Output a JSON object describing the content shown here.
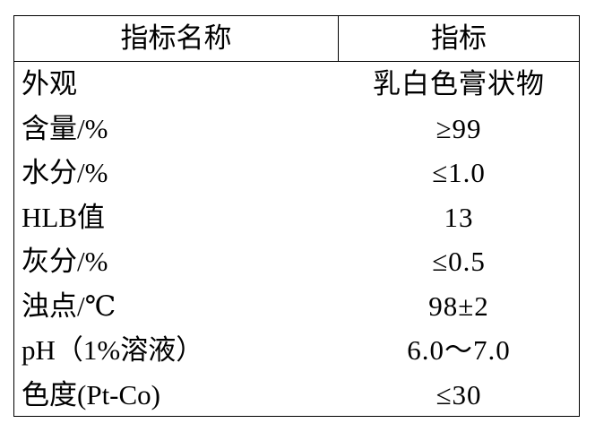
{
  "table": {
    "header": [
      "指标名称",
      "指标"
    ],
    "rows": [
      [
        "外观",
        "乳白色膏状物"
      ],
      [
        "含量/%",
        "≥99"
      ],
      [
        "水分/%",
        "≤1.0"
      ],
      [
        "HLB值",
        "13"
      ],
      [
        "灰分/%",
        "≤0.5"
      ],
      [
        "浊点/℃",
        "98±2"
      ],
      [
        "pH（1%溶液）",
        "6.0～7.0"
      ],
      [
        "色度(Pt-Co)",
        "≤30"
      ]
    ]
  }
}
